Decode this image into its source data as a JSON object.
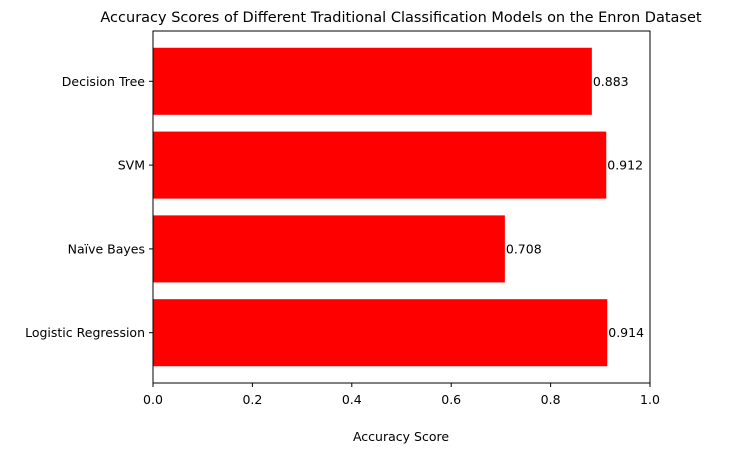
{
  "chart_data": {
    "type": "bar",
    "orientation": "horizontal",
    "title": "Accuracy Scores of Different Traditional Classification Models on the Enron Dataset",
    "xlabel": "Accuracy Score",
    "ylabel": "",
    "categories": [
      "Logistic Regression",
      "Naïve Bayes",
      "SVM",
      "Decision Tree"
    ],
    "values": [
      0.914,
      0.708,
      0.912,
      0.883
    ],
    "value_labels": [
      "0.914",
      "0.708",
      "0.912",
      "0.883"
    ],
    "xlim": [
      0,
      1
    ],
    "xticks": [
      0.0,
      0.2,
      0.4,
      0.6,
      0.8,
      1.0
    ],
    "xtick_labels": [
      "0.0",
      "0.2",
      "0.4",
      "0.6",
      "0.8",
      "1.0"
    ],
    "grid": false,
    "legend": false,
    "bar_color": "#ff0000"
  }
}
